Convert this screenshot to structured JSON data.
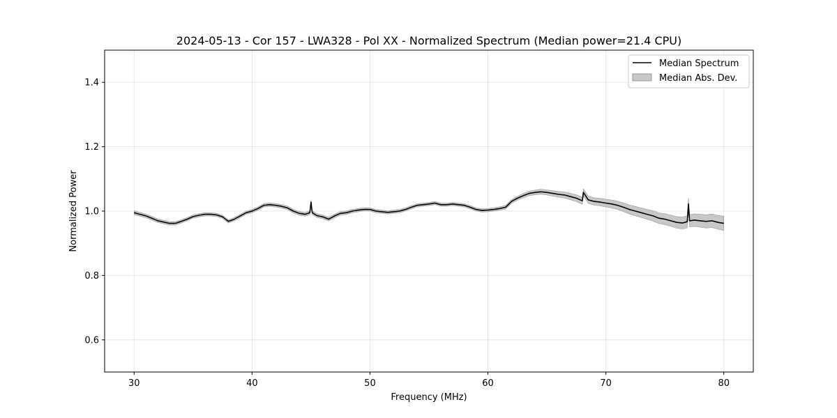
{
  "chart_data": {
    "type": "line",
    "title": "2024-05-13 - Cor 157 - LWA328 - Pol XX - Normalized Spectrum (Median power=21.4 CPU)",
    "xlabel": "Frequency (MHz)",
    "ylabel": "Normalized Power",
    "xlim": [
      27.5,
      82.5
    ],
    "ylim": [
      0.5,
      1.5
    ],
    "xticks": [
      30,
      40,
      50,
      60,
      70,
      80
    ],
    "yticks": [
      0.6,
      0.8,
      1.0,
      1.2,
      1.4
    ],
    "xtick_labels": [
      "30",
      "40",
      "50",
      "60",
      "70",
      "80"
    ],
    "ytick_labels": [
      "0.6",
      "0.8",
      "1.0",
      "1.2",
      "1.4"
    ],
    "grid": true,
    "legend_position": "top-right",
    "colors": {
      "line": "#000000",
      "band_fill": "#b0b0b0",
      "band_edge": "#9a9a9a"
    },
    "series": [
      {
        "name": "Median Spectrum",
        "kind": "line",
        "x": [
          30,
          30.5,
          31,
          31.5,
          32,
          32.5,
          33,
          33.5,
          34,
          34.5,
          35,
          35.5,
          36,
          36.5,
          37,
          37.5,
          38,
          38.5,
          39,
          39.5,
          40,
          40.5,
          41,
          41.5,
          42,
          42.5,
          43,
          43.5,
          44,
          44.5,
          44.9,
          45,
          45.1,
          45.5,
          46,
          46.5,
          47,
          47.5,
          48,
          48.5,
          49,
          49.5,
          50,
          50.5,
          51,
          51.5,
          52,
          52.5,
          53,
          53.5,
          54,
          54.5,
          55,
          55.5,
          56,
          56.5,
          57,
          57.5,
          58,
          58.5,
          59,
          59.5,
          60,
          60.5,
          61,
          61.5,
          62,
          62.5,
          63,
          63.5,
          64,
          64.5,
          65,
          65.5,
          66,
          66.5,
          67,
          67.5,
          68,
          68.1,
          68.5,
          69,
          69.5,
          70,
          70.5,
          71,
          71.5,
          72,
          72.5,
          73,
          73.5,
          74,
          74.5,
          75,
          75.5,
          76,
          76.5,
          76.9,
          77,
          77.1,
          77.5,
          78,
          78.5,
          79,
          79.5,
          80
        ],
        "values": [
          0.995,
          0.99,
          0.985,
          0.978,
          0.97,
          0.966,
          0.962,
          0.962,
          0.968,
          0.975,
          0.983,
          0.987,
          0.99,
          0.99,
          0.988,
          0.982,
          0.968,
          0.975,
          0.985,
          0.995,
          1.0,
          1.008,
          1.018,
          1.02,
          1.018,
          1.015,
          1.01,
          1.0,
          0.993,
          0.99,
          0.995,
          1.028,
          0.995,
          0.986,
          0.982,
          0.975,
          0.985,
          0.993,
          0.995,
          1.0,
          1.003,
          1.005,
          1.005,
          1.0,
          0.998,
          0.996,
          0.998,
          1.0,
          1.005,
          1.012,
          1.018,
          1.02,
          1.022,
          1.025,
          1.02,
          1.02,
          1.022,
          1.02,
          1.018,
          1.012,
          1.005,
          1.002,
          1.003,
          1.005,
          1.008,
          1.012,
          1.03,
          1.04,
          1.048,
          1.055,
          1.058,
          1.06,
          1.058,
          1.055,
          1.052,
          1.05,
          1.045,
          1.04,
          1.032,
          1.058,
          1.035,
          1.03,
          1.028,
          1.025,
          1.022,
          1.018,
          1.012,
          1.005,
          1.0,
          0.995,
          0.99,
          0.985,
          0.978,
          0.975,
          0.97,
          0.965,
          0.963,
          0.967,
          1.022,
          0.97,
          0.972,
          0.97,
          0.968,
          0.97,
          0.965,
          0.962
        ]
      },
      {
        "name": "Median Abs. Dev.",
        "kind": "band",
        "x": [
          30,
          35,
          40,
          45,
          50,
          55,
          60,
          62,
          65,
          67,
          68,
          70,
          72,
          74,
          76,
          77,
          78,
          80
        ],
        "half_width": [
          0.006,
          0.005,
          0.005,
          0.006,
          0.005,
          0.005,
          0.005,
          0.006,
          0.008,
          0.01,
          0.011,
          0.012,
          0.014,
          0.016,
          0.018,
          0.019,
          0.02,
          0.022
        ]
      }
    ]
  }
}
